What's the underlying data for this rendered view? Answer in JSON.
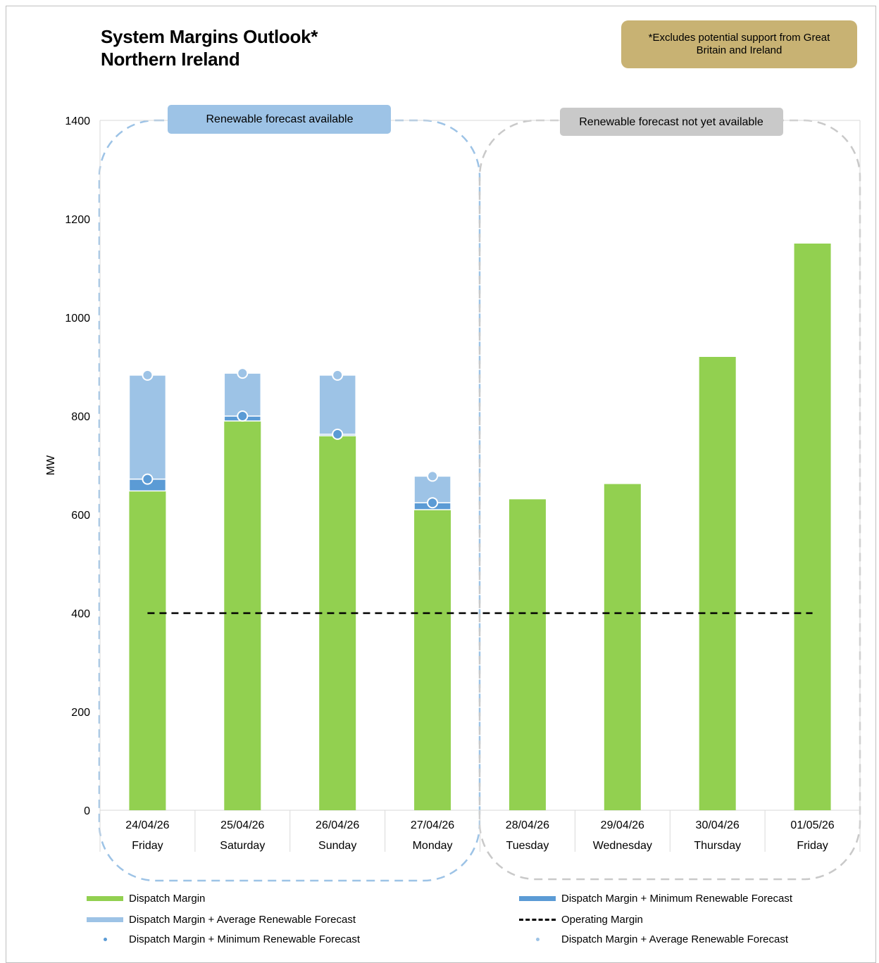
{
  "title_line1": "System Margins Outlook*",
  "title_line2": "Northern Ireland",
  "note_line1": "*Excludes potential support from Great",
  "note_line2": "Britain and Ireland",
  "region_available_label": "Renewable forecast available",
  "region_unavailable_label": "Renewable forecast not yet available",
  "colors": {
    "dispatch": "#92d050",
    "min_renewable": "#5b9bd5",
    "avg_renewable": "#9dc3e6",
    "operating": "#000000",
    "label_available": "#9dc3e6",
    "label_unavailable": "#c9c9c9",
    "note_bg": "#c8b273"
  },
  "chart_data": {
    "type": "bar",
    "ylabel": "MW",
    "ylim": [
      0,
      1400
    ],
    "yticks": [
      0,
      200,
      400,
      600,
      800,
      1000,
      1200,
      1400
    ],
    "categories": [
      {
        "date": "24/04/26",
        "day": "Friday"
      },
      {
        "date": "25/04/26",
        "day": "Saturday"
      },
      {
        "date": "26/04/26",
        "day": "Sunday"
      },
      {
        "date": "27/04/26",
        "day": "Monday"
      },
      {
        "date": "28/04/26",
        "day": "Tuesday"
      },
      {
        "date": "29/04/26",
        "day": "Wednesday"
      },
      {
        "date": "30/04/26",
        "day": "Thursday"
      },
      {
        "date": "01/05/26",
        "day": "Friday"
      }
    ],
    "series": [
      {
        "name": "Dispatch Margin",
        "values": [
          648,
          790,
          760,
          610,
          631,
          662,
          920,
          1150
        ]
      },
      {
        "name": "Dispatch Margin + Minimum Renewable Forecast",
        "values": [
          672,
          800,
          763,
          624,
          null,
          null,
          null,
          null
        ]
      },
      {
        "name": "Dispatch Margin + Average Renewable Forecast",
        "values": [
          883,
          887,
          883,
          678,
          null,
          null,
          null,
          null
        ]
      }
    ],
    "operating_margin": {
      "name": "Operating Margin",
      "value": 400
    },
    "grid": false,
    "legend_position": "bottom"
  },
  "legend": [
    {
      "label": "Dispatch Margin",
      "kind": "bar-green"
    },
    {
      "label": "Dispatch Margin + Minimum Renewable Forecast",
      "kind": "bar-dark"
    },
    {
      "label": "Dispatch Margin + Average Renewable Forecast",
      "kind": "bar-light"
    },
    {
      "label": "Operating Margin",
      "kind": "dash"
    },
    {
      "label": "Dispatch Margin + Minimum Renewable Forecast",
      "kind": "dot-dark"
    },
    {
      "label": "Dispatch Margin + Average Renewable Forecast",
      "kind": "dot-light"
    }
  ]
}
